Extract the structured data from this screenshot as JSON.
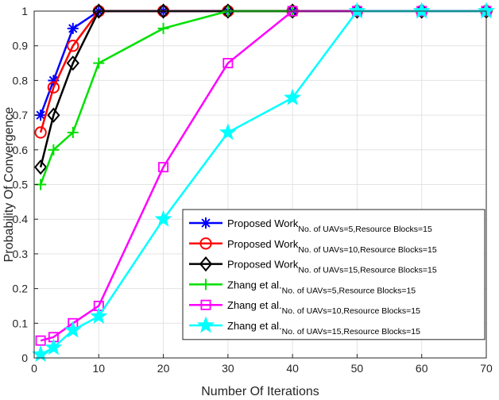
{
  "chart_data": {
    "type": "line",
    "xlabel": "Number Of Iterations",
    "ylabel": "Probability Of Convergence",
    "xlim": [
      0,
      70
    ],
    "ylim": [
      0,
      1
    ],
    "xticks": [
      0,
      10,
      20,
      30,
      40,
      50,
      60,
      70
    ],
    "yticks": [
      0,
      0.1,
      0.2,
      0.3,
      0.4,
      0.5,
      0.6,
      0.7,
      0.8,
      0.9,
      1
    ],
    "grid": true,
    "legend_position": "bottom-right",
    "series": [
      {
        "name": "Proposed Work",
        "subscript": "No. of UAVs=5,Resource Blocks=15",
        "color": "#0000ff",
        "marker": "asterisk",
        "x": [
          1,
          3,
          6,
          10,
          20,
          30,
          40,
          50,
          60,
          70
        ],
        "y": [
          0.7,
          0.8,
          0.95,
          1,
          1,
          1,
          1,
          1,
          1,
          1
        ]
      },
      {
        "name": "Proposed Work",
        "subscript": "No. of UAVs=10,Resource Blocks=15",
        "color": "#ff0000",
        "marker": "circle",
        "x": [
          1,
          3,
          6,
          10,
          20,
          30,
          40,
          50,
          60,
          70
        ],
        "y": [
          0.65,
          0.78,
          0.9,
          1,
          1,
          1,
          1,
          1,
          1,
          1
        ]
      },
      {
        "name": "Proposed Work",
        "subscript": "No. of UAVs=15,Resource Blocks=15",
        "color": "#000000",
        "marker": "diamond",
        "x": [
          1,
          3,
          6,
          10,
          20,
          30,
          40,
          50,
          60,
          70
        ],
        "y": [
          0.55,
          0.7,
          0.85,
          1,
          1,
          1,
          1,
          1,
          1,
          1
        ]
      },
      {
        "name": "Zhang et al.",
        "subscript": "No. of UAVs=5,Resource Blocks=15",
        "color": "#00e000",
        "marker": "plus",
        "x": [
          1,
          3,
          6,
          10,
          20,
          30,
          40,
          50,
          60,
          70
        ],
        "y": [
          0.5,
          0.6,
          0.65,
          0.85,
          0.95,
          1,
          1,
          1,
          1,
          1
        ]
      },
      {
        "name": "Zhang et al.",
        "subscript": "No. of UAVs=10,Resource Blocks=15",
        "color": "#ff00ff",
        "marker": "square",
        "x": [
          1,
          3,
          6,
          10,
          20,
          30,
          40,
          50,
          60,
          70
        ],
        "y": [
          0.05,
          0.06,
          0.1,
          0.15,
          0.55,
          0.85,
          1,
          1,
          1,
          1
        ]
      },
      {
        "name": "Zhang et al.",
        "subscript": "No. of UAVs=15,Resource Blocks=15",
        "color": "#00ffff",
        "marker": "star",
        "x": [
          1,
          3,
          6,
          10,
          20,
          30,
          40,
          50,
          60,
          70
        ],
        "y": [
          0.01,
          0.03,
          0.08,
          0.12,
          0.4,
          0.65,
          0.75,
          1,
          1,
          1
        ]
      }
    ]
  }
}
